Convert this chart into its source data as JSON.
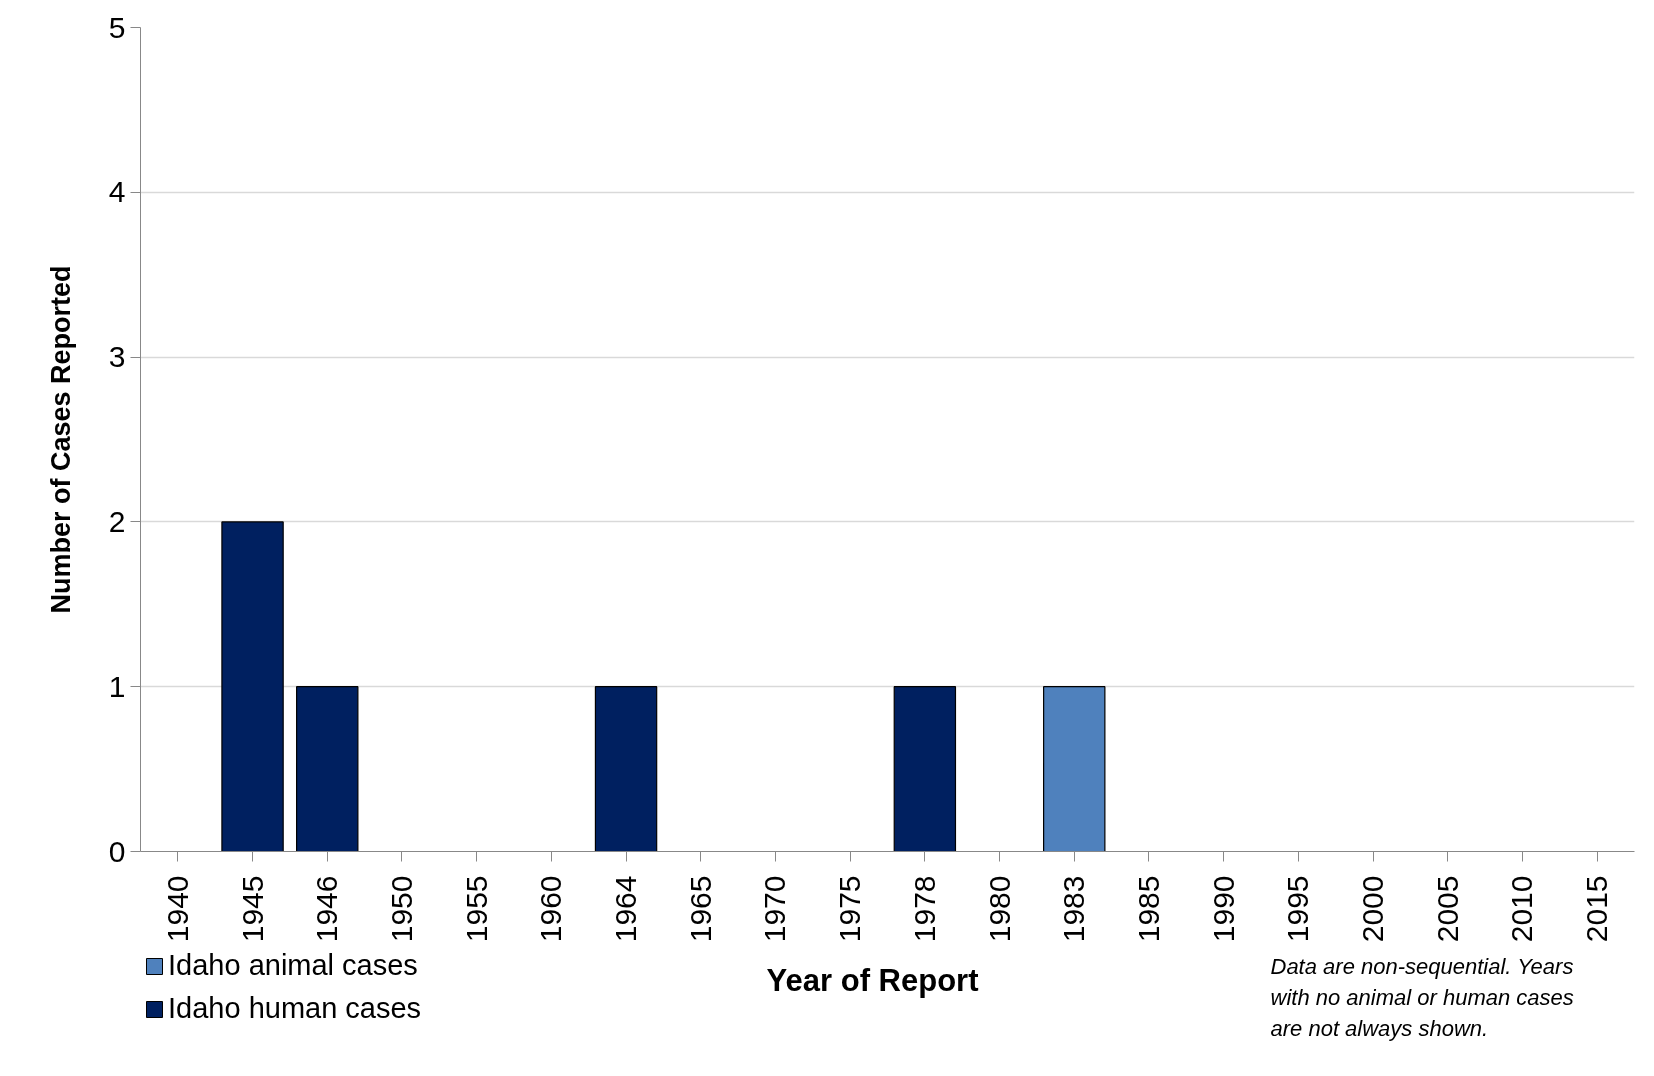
{
  "chart_data": {
    "type": "bar",
    "stacked": true,
    "xlabel": "Year of Report",
    "ylabel": "Number of Cases Reported",
    "categories": [
      "1940",
      "1945",
      "1946",
      "1950",
      "1955",
      "1960",
      "1964",
      "1965",
      "1970",
      "1975",
      "1978",
      "1980",
      "1983",
      "1985",
      "1990",
      "1995",
      "2000",
      "2005",
      "2010",
      "2015"
    ],
    "series": [
      {
        "name": "Idaho animal cases",
        "color": "#4f81bd",
        "values": [
          0,
          0,
          0,
          0,
          0,
          0,
          0,
          0,
          0,
          0,
          0,
          0,
          1,
          0,
          0,
          0,
          0,
          0,
          0,
          0
        ]
      },
      {
        "name": "Idaho human cases",
        "color": "#002060",
        "values": [
          0,
          2,
          1,
          0,
          0,
          0,
          1,
          0,
          0,
          0,
          1,
          0,
          0,
          0,
          0,
          0,
          0,
          0,
          0,
          0
        ]
      }
    ],
    "ylim": [
      0,
      5
    ],
    "yticks": [
      0,
      1,
      2,
      3,
      4,
      5
    ],
    "grid": "y",
    "legend": "bottom left",
    "annotations": [
      "Data are non-sequential. Years with no animal or human cases are not always shown."
    ]
  }
}
